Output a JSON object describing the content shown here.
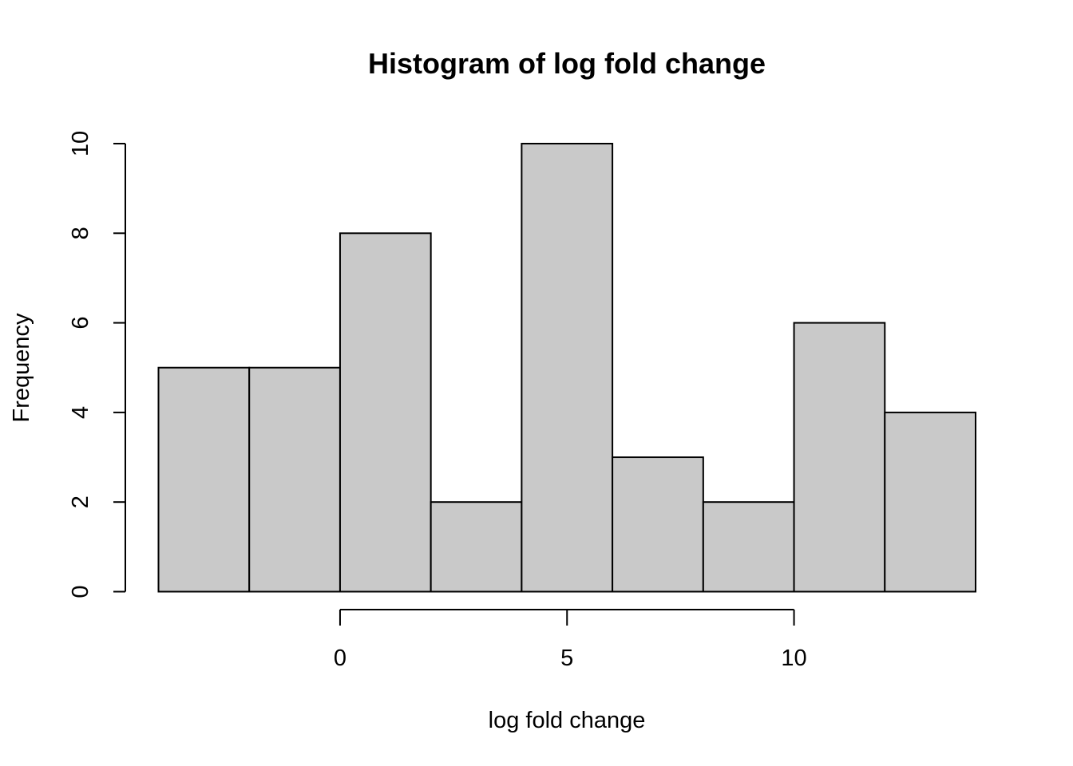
{
  "chart_data": {
    "type": "bar",
    "title": "Histogram of log fold change",
    "xlabel": "log fold change",
    "ylabel": "Frequency",
    "bin_edges": [
      -4,
      -2,
      0,
      2,
      4,
      6,
      8,
      10,
      12,
      14
    ],
    "values": [
      5,
      5,
      8,
      2,
      10,
      3,
      2,
      6,
      4
    ],
    "x_ticks": [
      0,
      5,
      10
    ],
    "x_tick_labels": [
      "0",
      "5",
      "10"
    ],
    "y_ticks": [
      0,
      2,
      4,
      6,
      8,
      10
    ],
    "y_tick_labels": [
      "0",
      "2",
      "4",
      "6",
      "8",
      "10"
    ],
    "xlim": [
      -4,
      14
    ],
    "ylim": [
      0,
      10
    ],
    "grid": false,
    "colors": {
      "bar_fill": "#c9c9c9",
      "bar_stroke": "#000000"
    }
  }
}
